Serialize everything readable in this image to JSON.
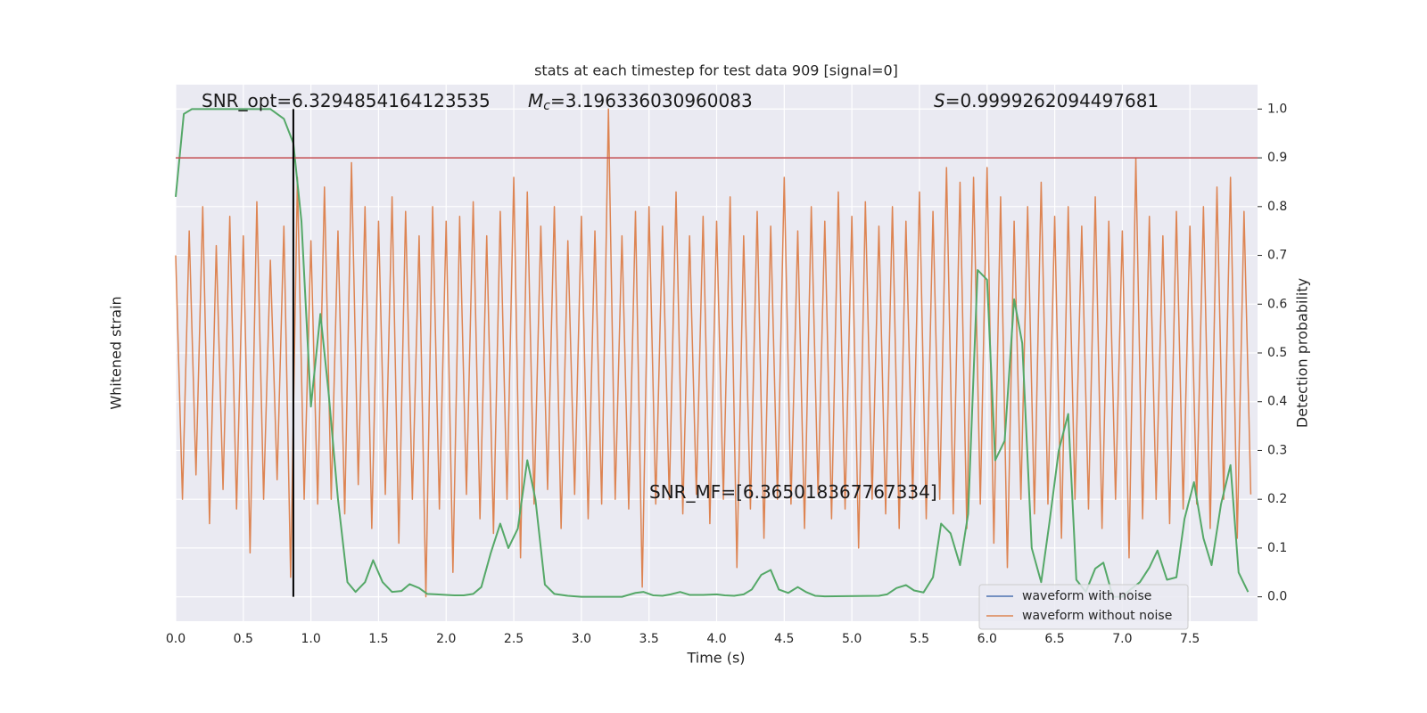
{
  "chart_data": {
    "type": "line",
    "title": "stats at each timestep for test data 909 [signal=0]",
    "xlabel": "Time (s)",
    "ylabel": "Whitened strain",
    "y2label": "Detection probability",
    "xlim": [
      0,
      8.0
    ],
    "xticks": [
      {
        "value": 0,
        "label": "0.0"
      },
      0.5,
      {
        "value": 1,
        "label": "1.0"
      },
      1.5,
      {
        "value": 2,
        "label": "2.0"
      },
      2.5,
      {
        "value": 3,
        "label": "3.0"
      },
      3.5,
      {
        "value": 4,
        "label": "4.0"
      },
      4.5,
      {
        "value": 5,
        "label": "5.0"
      },
      5.5,
      {
        "value": 6,
        "label": "6.0"
      },
      6.5,
      {
        "value": 7,
        "label": "7.0"
      },
      7.5
    ],
    "ylim": [
      -0.05,
      1.05
    ],
    "y2lim": [
      -0.05,
      1.05
    ],
    "y2ticks": [
      {
        "value": 0,
        "label": "0.0"
      },
      0.1,
      0.2,
      0.3,
      0.4,
      0.5,
      0.6,
      0.7,
      0.8,
      0.9,
      {
        "value": 1,
        "label": "1.0"
      }
    ],
    "grid": true,
    "legend": "lower right",
    "threshold": 0.9,
    "threshold_color": "#c44e52",
    "vline": 0.87,
    "vline_color": "#000000",
    "annotations": [
      {
        "text": "SNR_opt=6.3294854164123535"
      },
      {
        "symbol": "M",
        "subscript": "c",
        "text": "=3.196336030960083"
      },
      {
        "symbol": "S",
        "text": "=0.9999262094497681"
      },
      {
        "text": "SNR_MF=[6.365018367767334]"
      }
    ],
    "series": [
      {
        "name": "waveform with noise",
        "color": "#4c72b0"
      },
      {
        "name": "waveform without noise",
        "color": "#dd8452",
        "x": [
          0,
          0.05,
          0.1,
          0.15,
          0.2,
          0.25,
          0.3,
          0.35,
          0.4,
          0.45,
          0.5,
          0.55,
          0.6,
          0.65,
          0.7,
          0.75,
          0.8,
          0.85,
          0.9,
          0.95,
          1,
          1.05,
          1.1,
          1.15,
          1.2,
          1.25,
          1.3,
          1.35,
          1.4,
          1.45,
          1.5,
          1.55,
          1.6,
          1.65,
          1.7,
          1.75,
          1.8,
          1.85,
          1.9,
          1.95,
          2,
          2.05,
          2.1,
          2.15,
          2.2,
          2.25,
          2.3,
          2.35,
          2.4,
          2.45,
          2.5,
          2.55,
          2.6,
          2.65,
          2.7,
          2.75,
          2.8,
          2.85,
          2.9,
          2.95,
          3,
          3.05,
          3.1,
          3.15,
          3.2,
          3.25,
          3.3,
          3.35,
          3.4,
          3.45,
          3.5,
          3.55,
          3.6,
          3.65,
          3.7,
          3.75,
          3.8,
          3.85,
          3.9,
          3.95,
          4,
          4.05,
          4.1,
          4.15,
          4.2,
          4.25,
          4.3,
          4.35,
          4.4,
          4.45,
          4.5,
          4.55,
          4.6,
          4.65,
          4.7,
          4.75,
          4.8,
          4.85,
          4.9,
          4.95,
          5,
          5.05,
          5.1,
          5.15,
          5.2,
          5.25,
          5.3,
          5.35,
          5.4,
          5.45,
          5.5,
          5.55,
          5.6,
          5.65,
          5.7,
          5.75,
          5.8,
          5.85,
          5.9,
          5.95,
          6,
          6.05,
          6.1,
          6.15,
          6.2,
          6.25,
          6.3,
          6.35,
          6.4,
          6.45,
          6.5,
          6.55,
          6.6,
          6.65,
          6.7,
          6.75,
          6.8,
          6.85,
          6.9,
          6.95,
          7,
          7.05,
          7.1,
          7.15,
          7.2,
          7.25,
          7.3,
          7.35,
          7.4,
          7.45,
          7.5,
          7.55,
          7.6,
          7.65,
          7.7,
          7.75,
          7.8,
          7.85,
          7.9,
          7.95
        ],
        "values": [
          0.7,
          0.2,
          0.75,
          0.25,
          0.8,
          0.15,
          0.72,
          0.22,
          0.78,
          0.18,
          0.74,
          0.09,
          0.81,
          0.2,
          0.69,
          0.24,
          0.76,
          0.04,
          0.86,
          0.2,
          0.73,
          0.19,
          0.84,
          0.2,
          0.75,
          0.17,
          0.89,
          0.23,
          0.8,
          0.14,
          0.77,
          0.21,
          0.82,
          0.11,
          0.79,
          0.2,
          0.74,
          0.0,
          0.8,
          0.18,
          0.77,
          0.05,
          0.78,
          0.21,
          0.81,
          0.16,
          0.74,
          0.13,
          0.79,
          0.2,
          0.86,
          0.08,
          0.83,
          0.19,
          0.76,
          0.22,
          0.8,
          0.14,
          0.73,
          0.21,
          0.78,
          0.16,
          0.75,
          0.19,
          1.0,
          0.2,
          0.74,
          0.18,
          0.79,
          0.02,
          0.8,
          0.19,
          0.76,
          0.2,
          0.83,
          0.17,
          0.74,
          0.21,
          0.78,
          0.15,
          0.77,
          0.2,
          0.82,
          0.06,
          0.74,
          0.18,
          0.79,
          0.12,
          0.76,
          0.2,
          0.86,
          0.19,
          0.75,
          0.14,
          0.8,
          0.21,
          0.77,
          0.16,
          0.83,
          0.18,
          0.78,
          0.1,
          0.81,
          0.2,
          0.76,
          0.17,
          0.8,
          0.14,
          0.77,
          0.2,
          0.83,
          0.16,
          0.79,
          0.2,
          0.88,
          0.17,
          0.85,
          0.14,
          0.86,
          0.19,
          0.88,
          0.11,
          0.82,
          0.06,
          0.77,
          0.2,
          0.8,
          0.17,
          0.85,
          0.19,
          0.78,
          0.12,
          0.8,
          0.2,
          0.76,
          0.18,
          0.82,
          0.14,
          0.77,
          0.2,
          0.75,
          0.08,
          0.9,
          0.16,
          0.78,
          0.2,
          0.74,
          0.15,
          0.79,
          0.18,
          0.76,
          0.19,
          0.8,
          0.14,
          0.84,
          0.2,
          0.86,
          0.12,
          0.79,
          0.21
        ]
      },
      {
        "color": "#55a868",
        "axis": "y2",
        "x": [
          0,
          0.06,
          0.12,
          0.25,
          0.5,
          0.7,
          0.8,
          0.87,
          0.93,
          1.0,
          1.07,
          1.13,
          1.2,
          1.27,
          1.33,
          1.4,
          1.46,
          1.53,
          1.6,
          1.67,
          1.73,
          1.8,
          1.86,
          1.93,
          2.0,
          2.06,
          2.13,
          2.2,
          2.26,
          2.33,
          2.4,
          2.46,
          2.53,
          2.6,
          2.66,
          2.73,
          2.8,
          2.9,
          3.0,
          3.3,
          3.4,
          3.46,
          3.53,
          3.6,
          3.66,
          3.73,
          3.8,
          3.9,
          4.0,
          4.06,
          4.13,
          4.2,
          4.26,
          4.33,
          4.4,
          4.46,
          4.53,
          4.6,
          4.66,
          4.73,
          4.8,
          5.2,
          5.26,
          5.33,
          5.4,
          5.46,
          5.53,
          5.6,
          5.66,
          5.73,
          5.8,
          5.86,
          5.93,
          6.0,
          6.06,
          6.13,
          6.2,
          6.26,
          6.33,
          6.4,
          6.46,
          6.53,
          6.6,
          6.66,
          6.73,
          6.8,
          6.86,
          6.93,
          7.0,
          7.06,
          7.13,
          7.2,
          7.26,
          7.33,
          7.4,
          7.46,
          7.53,
          7.6,
          7.66,
          7.73,
          7.8,
          7.86,
          7.93
        ],
        "values": [
          0.82,
          0.99,
          1.0,
          1.0,
          1.0,
          1.0,
          0.98,
          0.93,
          0.77,
          0.39,
          0.58,
          0.42,
          0.2,
          0.03,
          0.01,
          0.03,
          0.075,
          0.03,
          0.01,
          0.012,
          0.026,
          0.018,
          0.006,
          0.005,
          0.004,
          0.003,
          0.003,
          0.006,
          0.02,
          0.09,
          0.15,
          0.1,
          0.14,
          0.28,
          0.2,
          0.025,
          0.006,
          0.002,
          0.0,
          0.0,
          0.008,
          0.01,
          0.003,
          0.002,
          0.005,
          0.01,
          0.004,
          0.004,
          0.005,
          0.003,
          0.002,
          0.005,
          0.015,
          0.045,
          0.055,
          0.015,
          0.008,
          0.02,
          0.01,
          0.002,
          0.001,
          0.002,
          0.005,
          0.018,
          0.024,
          0.013,
          0.009,
          0.04,
          0.15,
          0.13,
          0.065,
          0.17,
          0.67,
          0.65,
          0.28,
          0.32,
          0.61,
          0.52,
          0.1,
          0.03,
          0.15,
          0.3,
          0.375,
          0.035,
          0.01,
          0.058,
          0.07,
          0.0,
          0.0,
          0.015,
          0.03,
          0.06,
          0.095,
          0.035,
          0.04,
          0.16,
          0.235,
          0.12,
          0.065,
          0.19,
          0.27,
          0.05,
          0.01
        ]
      }
    ]
  }
}
